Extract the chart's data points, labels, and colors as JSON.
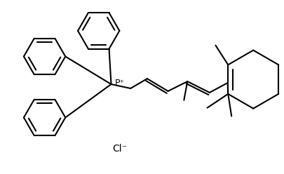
{
  "background_color": "#ffffff",
  "line_color": "#000000",
  "line_width": 1.5,
  "text_color": "#000000",
  "figsize": [
    4.06,
    2.48
  ],
  "dpi": 100,
  "cl_label": "Cl⁻",
  "p_label": "P⁺",
  "font_size": 9
}
